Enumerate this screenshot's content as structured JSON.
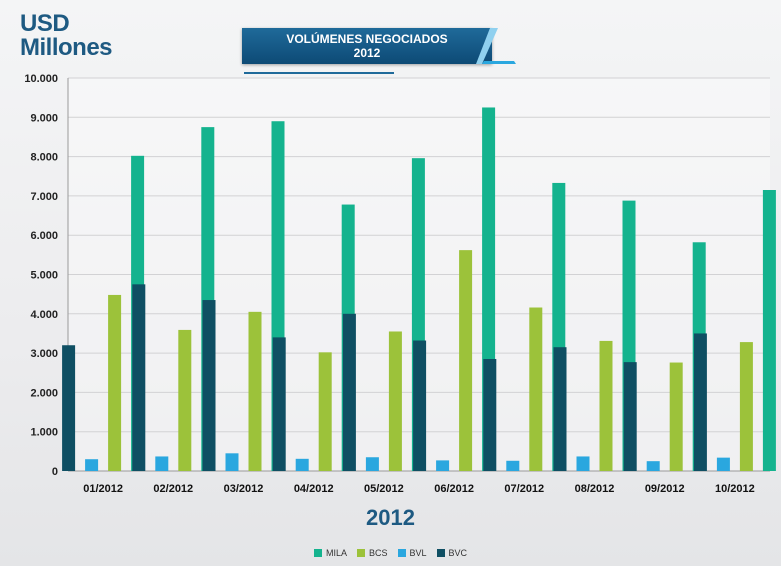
{
  "header": {
    "units_line1": "USD",
    "units_line2": "Millones",
    "title_line1": "VOLÚMENES NEGOCIADOS",
    "title_line2": "2012"
  },
  "chart_data": {
    "type": "bar",
    "title": "VOLÚMENES NEGOCIADOS 2012",
    "xlabel": "2012",
    "ylabel": "USD Millones",
    "ylim": [
      0,
      10000
    ],
    "yticks": [
      "0",
      "1.000",
      "2.000",
      "3.000",
      "4.000",
      "5.000",
      "6.000",
      "7.000",
      "8.000",
      "9.000",
      "10.000"
    ],
    "grid": true,
    "legend_position": "bottom",
    "categories": [
      "01/2012",
      "02/2012",
      "03/2012",
      "04/2012",
      "05/2012",
      "06/2012",
      "07/2012",
      "08/2012",
      "09/2012",
      "10/2012"
    ],
    "series": [
      {
        "name": "BVC",
        "color": "#0f4f63",
        "values": [
          3200,
          4750,
          4350,
          3400,
          4000,
          3320,
          2850,
          3150,
          2770,
          3500
        ]
      },
      {
        "name": "BVL",
        "color": "#2aa7df",
        "values": [
          300,
          370,
          450,
          310,
          350,
          270,
          260,
          370,
          250,
          340
        ]
      },
      {
        "name": "BCS",
        "color": "#9cc23a",
        "values": [
          4480,
          3590,
          4050,
          3020,
          3550,
          5620,
          4160,
          3310,
          2760,
          3280
        ]
      },
      {
        "name": "MILA",
        "color": "#14b38e",
        "values": [
          8020,
          8750,
          8900,
          6780,
          7960,
          9250,
          7330,
          6880,
          5820,
          7150
        ]
      }
    ],
    "legend_order": [
      "MILA",
      "BCS",
      "BVL",
      "BVC"
    ]
  }
}
